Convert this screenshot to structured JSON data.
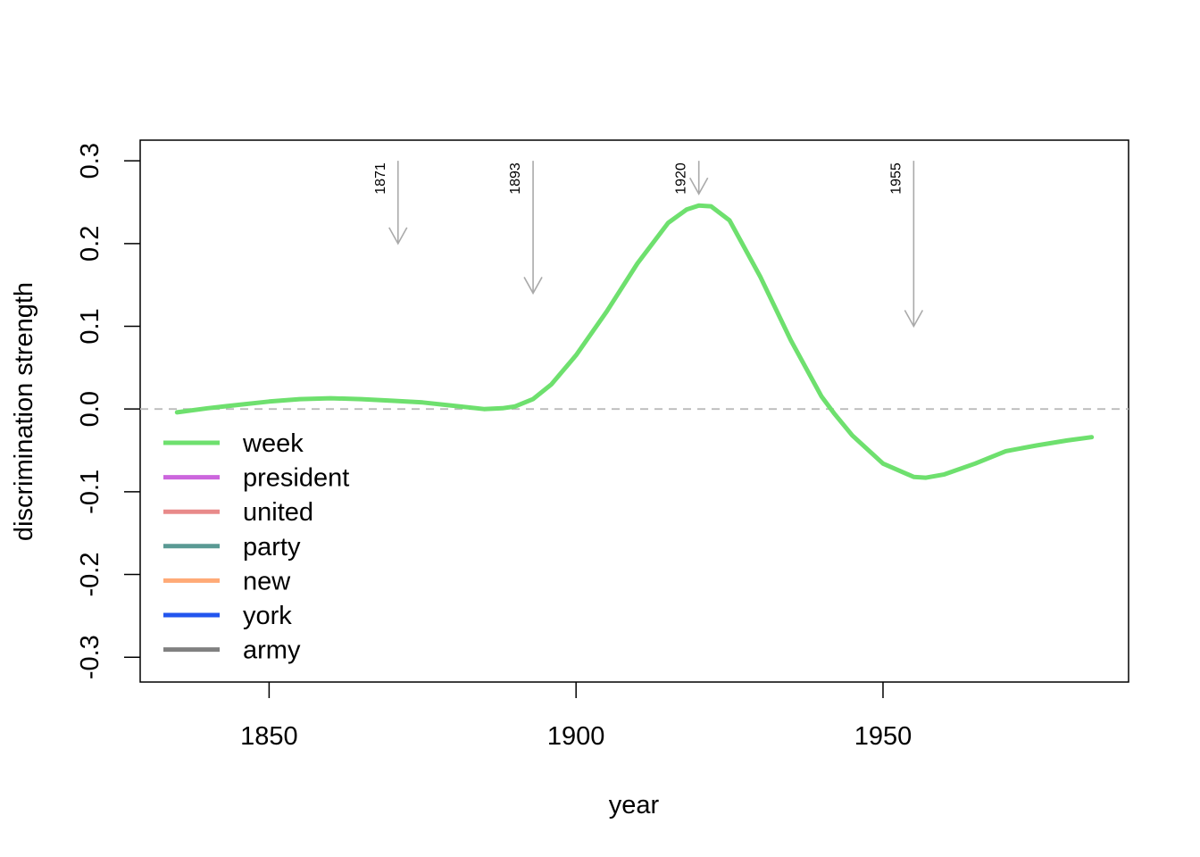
{
  "chart_data": {
    "type": "line",
    "title": "",
    "xlabel": "year",
    "ylabel": "discrimination strength",
    "xlim": [
      1829,
      1990
    ],
    "ylim": [
      -0.33,
      0.325
    ],
    "x_ticks": [
      1850,
      1900,
      1950
    ],
    "x_tick_labels": [
      "1850",
      "1900",
      "1950"
    ],
    "y_ticks": [
      -0.3,
      -0.2,
      -0.1,
      0.0,
      0.1,
      0.2,
      0.3
    ],
    "y_tick_labels": [
      "-0.3",
      "-0.2",
      "-0.1",
      "0.0",
      "0.1",
      "0.2",
      "0.3"
    ],
    "grid": false,
    "reference_line": {
      "y": 0.0,
      "style": "dashed",
      "color": "#bbbbbb"
    },
    "legend_position": "bottom-left",
    "series": [
      {
        "name": "week",
        "color": "#6ee06e",
        "x": [
          1835,
          1840,
          1845,
          1850,
          1855,
          1860,
          1865,
          1870,
          1875,
          1880,
          1885,
          1888,
          1890,
          1893,
          1896,
          1900,
          1905,
          1910,
          1915,
          1918,
          1920,
          1922,
          1925,
          1930,
          1935,
          1940,
          1942,
          1945,
          1950,
          1955,
          1957,
          1960,
          1965,
          1970,
          1975,
          1980,
          1984
        ],
        "y": [
          -0.004,
          0.001,
          0.005,
          0.009,
          0.012,
          0.013,
          0.012,
          0.01,
          0.008,
          0.004,
          0.0,
          0.001,
          0.003,
          0.012,
          0.03,
          0.065,
          0.118,
          0.176,
          0.225,
          0.241,
          0.246,
          0.245,
          0.228,
          0.16,
          0.083,
          0.015,
          -0.005,
          -0.032,
          -0.066,
          -0.082,
          -0.083,
          -0.079,
          -0.066,
          -0.051,
          -0.044,
          -0.038,
          -0.034
        ]
      },
      {
        "name": "president",
        "color": "#cc66dd",
        "x": [],
        "y": []
      },
      {
        "name": "united",
        "color": "#e88a8a",
        "x": [],
        "y": []
      },
      {
        "name": "party",
        "color": "#5a9a94",
        "x": [],
        "y": []
      },
      {
        "name": "new",
        "color": "#ffaa77",
        "x": [],
        "y": []
      },
      {
        "name": "york",
        "color": "#2255ee",
        "x": [],
        "y": []
      },
      {
        "name": "army",
        "color": "#808080",
        "x": [],
        "y": []
      }
    ],
    "annotations": [
      {
        "label": "1871",
        "x": 1871,
        "y_from": 0.3,
        "y_to": 0.2
      },
      {
        "label": "1893",
        "x": 1893,
        "y_from": 0.3,
        "y_to": 0.14
      },
      {
        "label": "1920",
        "x": 1920,
        "y_from": 0.3,
        "y_to": 0.26
      },
      {
        "label": "1955",
        "x": 1955,
        "y_from": 0.3,
        "y_to": 0.1
      }
    ]
  }
}
